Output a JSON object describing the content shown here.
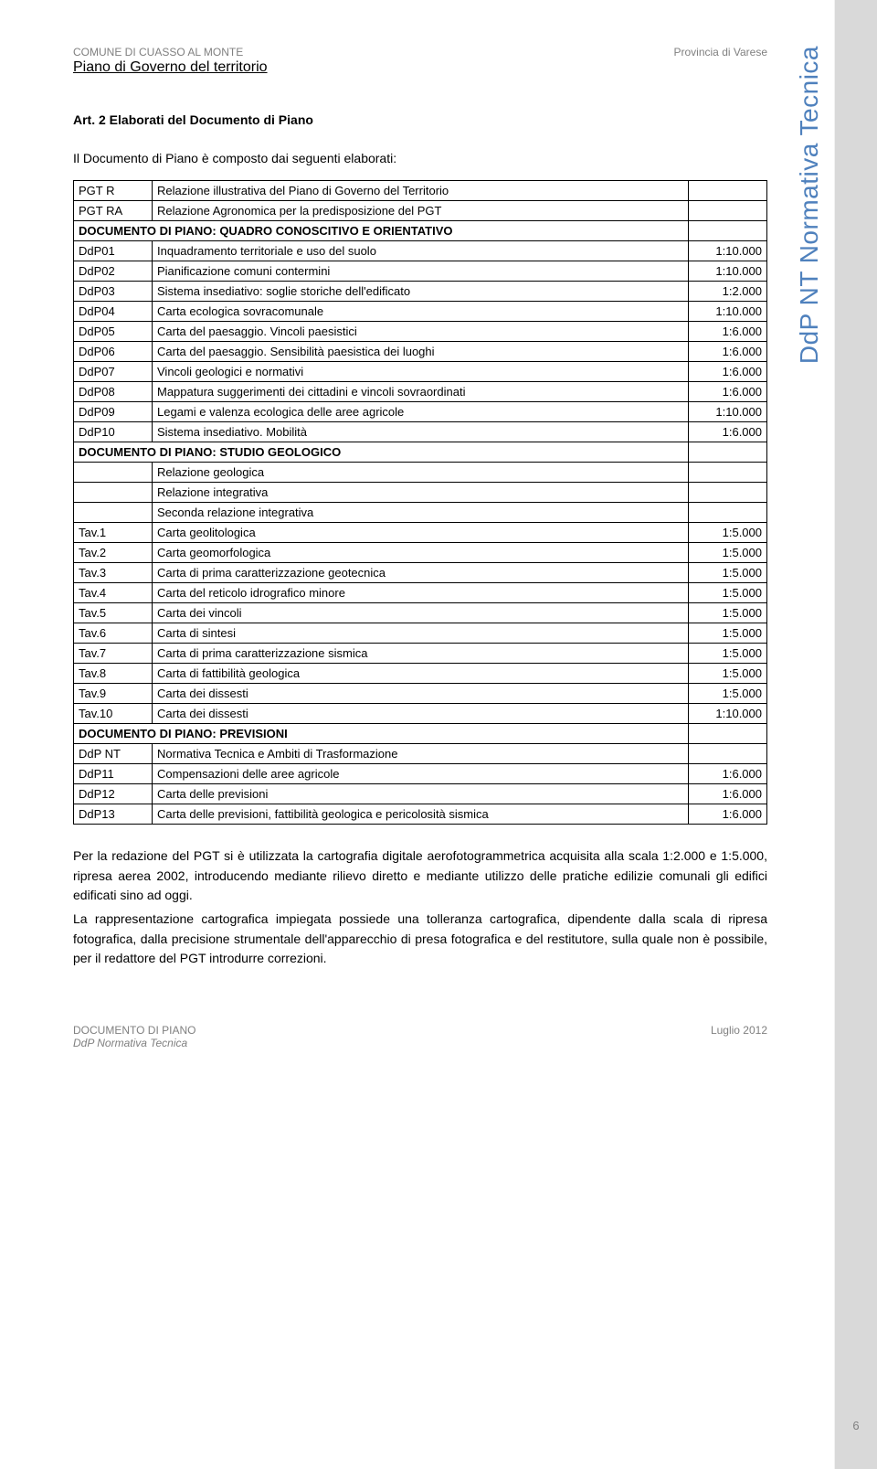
{
  "header": {
    "left_line1": "COMUNE DI CUASSO AL MONTE",
    "left_line2": "Piano di Governo del territorio",
    "right_line1": "Provincia di Varese"
  },
  "side_label": "DdP NT Normativa Tecnica",
  "heading": "Art. 2 Elaborati del Documento di Piano",
  "intro": "Il Documento di Piano è composto dai seguenti elaborati:",
  "table": {
    "col_widths": {
      "c1": 86,
      "c3": 86
    },
    "rows": [
      {
        "c1": "PGT R",
        "c2": "Relazione illustrativa del Piano di Governo del Territorio",
        "c3": ""
      },
      {
        "c1": "PGT RA",
        "c2": "Relazione Agronomica per la predisposizione del PGT",
        "c3": ""
      },
      {
        "section": true,
        "label": "DOCUMENTO DI PIANO: QUADRO CONOSCITIVO E ORIENTATIVO"
      },
      {
        "c1": "DdP01",
        "c2": "Inquadramento territoriale e uso del suolo",
        "c3": "1:10.000"
      },
      {
        "c1": "DdP02",
        "c2": "Pianificazione comuni contermini",
        "c3": "1:10.000"
      },
      {
        "c1": "DdP03",
        "c2": "Sistema insediativo: soglie storiche dell'edificato",
        "c3": "1:2.000"
      },
      {
        "c1": "DdP04",
        "c2": "Carta ecologica sovracomunale",
        "c3": "1:10.000"
      },
      {
        "c1": "DdP05",
        "c2": "Carta del paesaggio. Vincoli paesistici",
        "c3": "1:6.000"
      },
      {
        "c1": "DdP06",
        "c2": "Carta del paesaggio. Sensibilità paesistica dei luoghi",
        "c3": "1:6.000"
      },
      {
        "c1": "DdP07",
        "c2": "Vincoli geologici e normativi",
        "c3": "1:6.000"
      },
      {
        "c1": "DdP08",
        "c2": "Mappatura suggerimenti dei cittadini e vincoli sovraordinati",
        "c3": "1:6.000"
      },
      {
        "c1": "DdP09",
        "c2": "Legami e valenza ecologica delle aree agricole",
        "c3": "1:10.000"
      },
      {
        "c1": "DdP10",
        "c2": "Sistema insediativo. Mobilità",
        "c3": "1:6.000"
      },
      {
        "section": true,
        "label": "DOCUMENTO DI PIANO: STUDIO GEOLOGICO"
      },
      {
        "c1": "",
        "c2": "Relazione geologica",
        "c3": ""
      },
      {
        "c1": "",
        "c2": "Relazione integrativa",
        "c3": ""
      },
      {
        "c1": "",
        "c2": "Seconda relazione integrativa",
        "c3": ""
      },
      {
        "c1": "Tav.1",
        "c2": "Carta geolitologica",
        "c3": "1:5.000"
      },
      {
        "c1": "Tav.2",
        "c2": "Carta geomorfologica",
        "c3": "1:5.000"
      },
      {
        "c1": "Tav.3",
        "c2": "Carta di prima caratterizzazione geotecnica",
        "c3": "1:5.000"
      },
      {
        "c1": "Tav.4",
        "c2": "Carta del reticolo idrografico minore",
        "c3": "1:5.000"
      },
      {
        "c1": "Tav.5",
        "c2": "Carta dei vincoli",
        "c3": "1:5.000"
      },
      {
        "c1": "Tav.6",
        "c2": "Carta di sintesi",
        "c3": "1:5.000"
      },
      {
        "c1": "Tav.7",
        "c2": "Carta di prima caratterizzazione sismica",
        "c3": "1:5.000"
      },
      {
        "c1": "Tav.8",
        "c2": "Carta di fattibilità geologica",
        "c3": "1:5.000"
      },
      {
        "c1": "Tav.9",
        "c2": "Carta dei dissesti",
        "c3": "1:5.000"
      },
      {
        "c1": "Tav.10",
        "c2": "Carta dei dissesti",
        "c3": "1:10.000"
      },
      {
        "section": true,
        "label": "DOCUMENTO DI PIANO: PREVISIONI"
      },
      {
        "c1": "DdP NT",
        "c2": "Normativa Tecnica e Ambiti di Trasformazione",
        "c3": ""
      },
      {
        "c1": "DdP11",
        "c2": "Compensazioni delle aree agricole",
        "c3": "1:6.000"
      },
      {
        "c1": "DdP12",
        "c2": "Carta delle previsioni",
        "c3": "1:6.000"
      },
      {
        "c1": "DdP13",
        "c2": "Carta delle previsioni, fattibilità geologica e pericolosità sismica",
        "c3": "1:6.000"
      }
    ]
  },
  "para1": "Per la redazione del PGT si è utilizzata la cartografia digitale aerofotogrammetrica acquisita alla scala 1:2.000 e 1:5.000, ripresa aerea 2002, introducendo mediante rilievo diretto e mediante utilizzo delle pratiche edilizie comunali gli edifici edificati sino ad oggi.",
  "para2": "La rappresentazione cartografica impiegata possiede una tolleranza cartografica, dipendente dalla scala di ripresa fotografica, dalla precisione strumentale dell'apparecchio di presa fotografica e del restitutore, sulla quale non è possibile, per il redattore del PGT introdurre correzioni.",
  "footer": {
    "left_line1": "DOCUMENTO DI PIANO",
    "left_line2": "DdP Normativa Tecnica",
    "right": "Luglio 2012"
  },
  "page_number": "6",
  "colors": {
    "grey": "#808080",
    "side": "#4f81bd",
    "band": "#d9d9d9"
  }
}
